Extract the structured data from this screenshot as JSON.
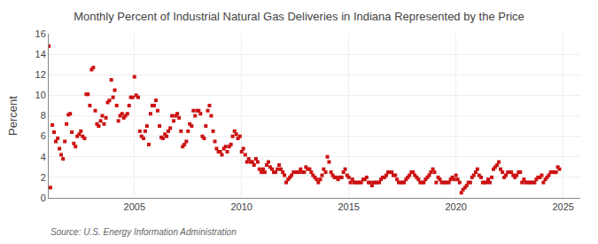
{
  "chart_data": {
    "type": "scatter",
    "title": "Monthly Percent of Industrial Natural Gas Deliveries in Indiana Represented by the Price",
    "ylabel": "Percent",
    "annotations": [
      "Source: U.S. Energy Information Administration"
    ],
    "color": "#CC1111",
    "marker": "square",
    "grid": true,
    "xlim": [
      2001.0,
      2025.8
    ],
    "xticks": [
      2005,
      2010,
      2015,
      2020,
      2025
    ],
    "ylim": [
      0,
      16
    ],
    "yticks": [
      0,
      2,
      4,
      6,
      8,
      10,
      12,
      14,
      16
    ],
    "x": [
      2001.0,
      2001.08,
      2001.17,
      2001.25,
      2001.33,
      2001.42,
      2001.5,
      2001.58,
      2001.67,
      2001.75,
      2001.83,
      2001.92,
      2002.0,
      2002.08,
      2002.17,
      2002.25,
      2002.33,
      2002.42,
      2002.5,
      2002.58,
      2002.67,
      2002.75,
      2002.83,
      2002.92,
      2003.0,
      2003.08,
      2003.17,
      2003.25,
      2003.33,
      2003.42,
      2003.5,
      2003.58,
      2003.67,
      2003.75,
      2003.83,
      2003.92,
      2004.0,
      2004.08,
      2004.17,
      2004.25,
      2004.33,
      2004.42,
      2004.5,
      2004.58,
      2004.67,
      2004.75,
      2004.83,
      2004.92,
      2005.0,
      2005.08,
      2005.17,
      2005.25,
      2005.33,
      2005.42,
      2005.5,
      2005.58,
      2005.67,
      2005.75,
      2005.83,
      2005.92,
      2006.0,
      2006.08,
      2006.17,
      2006.25,
      2006.33,
      2006.42,
      2006.5,
      2006.58,
      2006.67,
      2006.75,
      2006.83,
      2006.92,
      2007.0,
      2007.08,
      2007.17,
      2007.25,
      2007.33,
      2007.42,
      2007.5,
      2007.58,
      2007.67,
      2007.75,
      2007.83,
      2007.92,
      2008.0,
      2008.08,
      2008.17,
      2008.25,
      2008.33,
      2008.42,
      2008.5,
      2008.58,
      2008.67,
      2008.75,
      2008.83,
      2008.92,
      2009.0,
      2009.08,
      2009.17,
      2009.25,
      2009.33,
      2009.42,
      2009.5,
      2009.58,
      2009.67,
      2009.75,
      2009.83,
      2009.92,
      2010.0,
      2010.08,
      2010.17,
      2010.25,
      2010.33,
      2010.42,
      2010.5,
      2010.58,
      2010.67,
      2010.75,
      2010.83,
      2010.92,
      2011.0,
      2011.08,
      2011.17,
      2011.25,
      2011.33,
      2011.42,
      2011.5,
      2011.58,
      2011.67,
      2011.75,
      2011.83,
      2011.92,
      2012.0,
      2012.08,
      2012.17,
      2012.25,
      2012.33,
      2012.42,
      2012.5,
      2012.58,
      2012.67,
      2012.75,
      2012.83,
      2012.92,
      2013.0,
      2013.08,
      2013.17,
      2013.25,
      2013.33,
      2013.42,
      2013.5,
      2013.58,
      2013.67,
      2013.75,
      2013.83,
      2013.92,
      2014.0,
      2014.08,
      2014.17,
      2014.25,
      2014.33,
      2014.42,
      2014.5,
      2014.58,
      2014.67,
      2014.75,
      2014.83,
      2014.92,
      2015.0,
      2015.08,
      2015.17,
      2015.25,
      2015.33,
      2015.42,
      2015.5,
      2015.58,
      2015.67,
      2015.75,
      2015.83,
      2015.92,
      2016.0,
      2016.08,
      2016.17,
      2016.25,
      2016.33,
      2016.42,
      2016.5,
      2016.58,
      2016.67,
      2016.75,
      2016.83,
      2016.92,
      2017.0,
      2017.08,
      2017.17,
      2017.25,
      2017.33,
      2017.42,
      2017.5,
      2017.58,
      2017.67,
      2017.75,
      2017.83,
      2017.92,
      2018.0,
      2018.08,
      2018.17,
      2018.25,
      2018.33,
      2018.42,
      2018.5,
      2018.58,
      2018.67,
      2018.75,
      2018.83,
      2018.92,
      2019.0,
      2019.08,
      2019.17,
      2019.25,
      2019.33,
      2019.42,
      2019.5,
      2019.58,
      2019.67,
      2019.75,
      2019.83,
      2019.92,
      2020.0,
      2020.08,
      2020.17,
      2020.25,
      2020.33,
      2020.42,
      2020.5,
      2020.58,
      2020.67,
      2020.75,
      2020.83,
      2020.92,
      2021.0,
      2021.08,
      2021.17,
      2021.25,
      2021.33,
      2021.42,
      2021.5,
      2021.58,
      2021.67,
      2021.75,
      2021.83,
      2021.92,
      2022.0,
      2022.08,
      2022.17,
      2022.25,
      2022.33,
      2022.42,
      2022.5,
      2022.58,
      2022.67,
      2022.75,
      2022.83,
      2022.92,
      2023.0,
      2023.08,
      2023.17,
      2023.25,
      2023.33,
      2023.42,
      2023.5,
      2023.58,
      2023.67,
      2023.75,
      2023.83,
      2023.92,
      2024.0,
      2024.08,
      2024.17,
      2024.25,
      2024.33,
      2024.42,
      2024.5,
      2024.58,
      2024.67,
      2024.75,
      2024.83
    ],
    "values": [
      14.8,
      1.0,
      7.1,
      6.4,
      5.5,
      5.8,
      4.8,
      4.2,
      3.8,
      5.5,
      7.2,
      8.1,
      8.2,
      6.4,
      5.3,
      5.0,
      6.0,
      6.2,
      6.5,
      6.0,
      5.8,
      10.1,
      10.1,
      9.0,
      12.5,
      12.7,
      8.5,
      7.2,
      7.0,
      7.5,
      8.0,
      7.2,
      7.8,
      9.3,
      9.5,
      11.5,
      9.8,
      10.5,
      9.0,
      7.5,
      8.0,
      8.2,
      7.8,
      8.0,
      8.2,
      9.0,
      9.8,
      9.8,
      11.8,
      10.0,
      9.8,
      6.5,
      6.0,
      5.8,
      6.5,
      7.0,
      5.2,
      8.2,
      9.0,
      9.0,
      9.5,
      8.5,
      7.0,
      5.9,
      5.8,
      6.2,
      6.0,
      6.5,
      6.8,
      8.0,
      7.5,
      8.0,
      8.2,
      7.8,
      6.5,
      5.0,
      5.2,
      5.5,
      6.5,
      7.2,
      7.0,
      8.5,
      8.0,
      8.5,
      8.5,
      8.2,
      6.0,
      5.8,
      7.0,
      8.5,
      9.0,
      8.0,
      6.5,
      5.5,
      4.8,
      4.5,
      4.5,
      4.2,
      4.8,
      5.0,
      4.5,
      5.0,
      5.2,
      6.0,
      6.5,
      6.2,
      5.8,
      6.0,
      4.5,
      4.8,
      4.2,
      3.5,
      3.8,
      3.5,
      3.5,
      3.2,
      3.8,
      3.5,
      2.8,
      2.5,
      2.8,
      2.5,
      3.2,
      3.5,
      3.0,
      2.8,
      2.5,
      2.5,
      2.8,
      3.2,
      2.8,
      2.5,
      2.2,
      1.5,
      1.8,
      2.0,
      2.2,
      2.5,
      2.5,
      2.5,
      2.5,
      2.8,
      2.5,
      2.5,
      3.0,
      2.8,
      2.8,
      2.5,
      2.2,
      2.0,
      1.8,
      1.5,
      1.8,
      2.2,
      2.8,
      2.5,
      4.0,
      3.5,
      2.5,
      2.2,
      2.0,
      2.0,
      1.8,
      2.0,
      2.0,
      2.5,
      2.8,
      2.2,
      2.0,
      1.5,
      1.8,
      1.5,
      1.5,
      1.5,
      1.5,
      1.5,
      1.8,
      1.8,
      2.0,
      1.5,
      1.5,
      1.2,
      1.5,
      1.5,
      1.5,
      1.5,
      1.8,
      2.0,
      2.0,
      2.2,
      2.5,
      2.5,
      2.5,
      2.2,
      2.2,
      1.8,
      1.5,
      1.5,
      1.5,
      1.5,
      1.8,
      2.0,
      2.2,
      2.5,
      2.5,
      2.2,
      2.0,
      1.8,
      1.5,
      1.5,
      1.5,
      1.8,
      2.0,
      2.2,
      2.5,
      2.8,
      2.5,
      1.5,
      2.0,
      1.8,
      1.5,
      1.5,
      1.5,
      1.5,
      1.5,
      1.8,
      2.0,
      1.8,
      2.2,
      1.8,
      1.5,
      0.5,
      0.8,
      1.0,
      1.2,
      1.5,
      1.5,
      2.0,
      2.2,
      2.5,
      2.8,
      2.2,
      2.0,
      1.5,
      1.5,
      1.5,
      1.8,
      1.5,
      2.0,
      2.8,
      3.0,
      3.2,
      3.5,
      2.8,
      2.5,
      2.0,
      2.2,
      2.5,
      2.5,
      2.5,
      2.2,
      2.0,
      2.2,
      2.5,
      2.5,
      1.5,
      1.8,
      1.5,
      1.5,
      1.5,
      1.5,
      1.5,
      1.5,
      1.8,
      2.0,
      2.0,
      2.2,
      1.5,
      1.8,
      2.0,
      2.2,
      2.5,
      2.5,
      2.5,
      2.5,
      3.0,
      2.8
    ]
  }
}
